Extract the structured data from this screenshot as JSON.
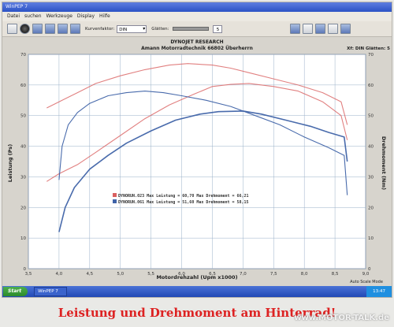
{
  "window": {
    "title": "WinPEP 7"
  },
  "menu": {
    "items": [
      "Datei",
      "suchen",
      "Werkzeuge",
      "Display",
      "Hilfe"
    ]
  },
  "toolbar": {
    "kurvenfaktor_label": "Kurvenfaktor:",
    "kurvenfaktor_value": "DIN",
    "glatten_label": "Glätten:",
    "glatten_value": "5"
  },
  "taskbar": {
    "start_label": "Start",
    "task_label": "WinPEP 7",
    "clock": "13:47"
  },
  "mode_bar": "Auto Scale Mode",
  "caption": "Leistung und Drehmoment am Hinterrad!",
  "watermark": "www.MOTOR-TALK.de",
  "colors": {
    "red": "#d96060",
    "blue": "#3f63a8",
    "plot_bg": "#ffffff",
    "grid": "#9ab0c8"
  },
  "chart_data": {
    "type": "line",
    "header_line1": "DYNOJET RESEARCH",
    "header_line2": "Amann Motorradtechnik 66802 Überherrn",
    "top_right": "Xf: DIN  Glätten: 5",
    "xlabel": "Motordrehzahl (Upm x1000)",
    "ylabel_left": "Leistung (Ps)",
    "ylabel_right": "Drehmoment (Nm)",
    "xlim": [
      3.5,
      9.0
    ],
    "ylim": [
      0,
      70
    ],
    "xticks": [
      3.5,
      4.0,
      4.5,
      5.0,
      5.5,
      6.0,
      6.5,
      7.0,
      7.5,
      8.0,
      8.5,
      9.0
    ],
    "xtick_labels": [
      "3,5",
      "4,0",
      "4,5",
      "5,0",
      "5,5",
      "6,0",
      "6,5",
      "7,0",
      "7,5",
      "8,0",
      "8,5",
      "9,0"
    ],
    "yticks": [
      0,
      10,
      20,
      30,
      40,
      50,
      60,
      70
    ],
    "legend": [
      {
        "text": "DYNORUN.023 Max Leistung = 60,70 Max Drehmoment = 66,21",
        "color": "#d96060"
      },
      {
        "text": "DYNORUN.061 Max Leistung = 51,60 Max Drehmoment = 58,15",
        "color": "#3f63a8"
      }
    ],
    "series": [
      {
        "name": "DYNORUN.023",
        "kind": "power",
        "color": "#d96060",
        "x": [
          3.8,
          4.0,
          4.3,
          4.6,
          5.0,
          5.4,
          5.8,
          6.2,
          6.5,
          6.8,
          7.1,
          7.5,
          7.9,
          8.3,
          8.6,
          8.7
        ],
        "y": [
          28.5,
          31,
          34,
          38,
          43.5,
          49,
          53.5,
          57,
          59.5,
          60.2,
          60.5,
          59.5,
          58,
          54.5,
          50,
          42
        ]
      },
      {
        "name": "DYNORUN.023",
        "kind": "torque",
        "color": "#d96060",
        "x": [
          3.8,
          4.0,
          4.3,
          4.6,
          5.0,
          5.4,
          5.8,
          6.1,
          6.5,
          6.8,
          7.1,
          7.5,
          7.9,
          8.3,
          8.6,
          8.7
        ],
        "y": [
          52.5,
          54.5,
          57.5,
          60.5,
          63,
          65,
          66.5,
          67,
          66.5,
          65.5,
          64,
          62,
          60,
          57.5,
          54.5,
          47
        ]
      },
      {
        "name": "DYNORUN.061",
        "kind": "power",
        "color": "#3f63a8",
        "x": [
          4.0,
          4.1,
          4.25,
          4.5,
          4.8,
          5.1,
          5.5,
          5.9,
          6.3,
          6.6,
          7.0,
          7.3,
          7.7,
          8.1,
          8.4,
          8.65,
          8.7
        ],
        "y": [
          12,
          20,
          26.5,
          32.5,
          37,
          41,
          45,
          48.5,
          50.5,
          51.3,
          51.5,
          50.5,
          48.5,
          46.5,
          44.5,
          43,
          35
        ]
      },
      {
        "name": "DYNORUN.061",
        "kind": "torque",
        "color": "#3f63a8",
        "x": [
          4.0,
          4.05,
          4.15,
          4.3,
          4.5,
          4.8,
          5.1,
          5.4,
          5.7,
          6.0,
          6.4,
          6.8,
          7.2,
          7.6,
          8.0,
          8.4,
          8.65,
          8.7
        ],
        "y": [
          29,
          40,
          47,
          51,
          54,
          56.5,
          57.5,
          58,
          57.5,
          56.5,
          55,
          53,
          50,
          47,
          43,
          39.5,
          37,
          24
        ]
      }
    ]
  }
}
